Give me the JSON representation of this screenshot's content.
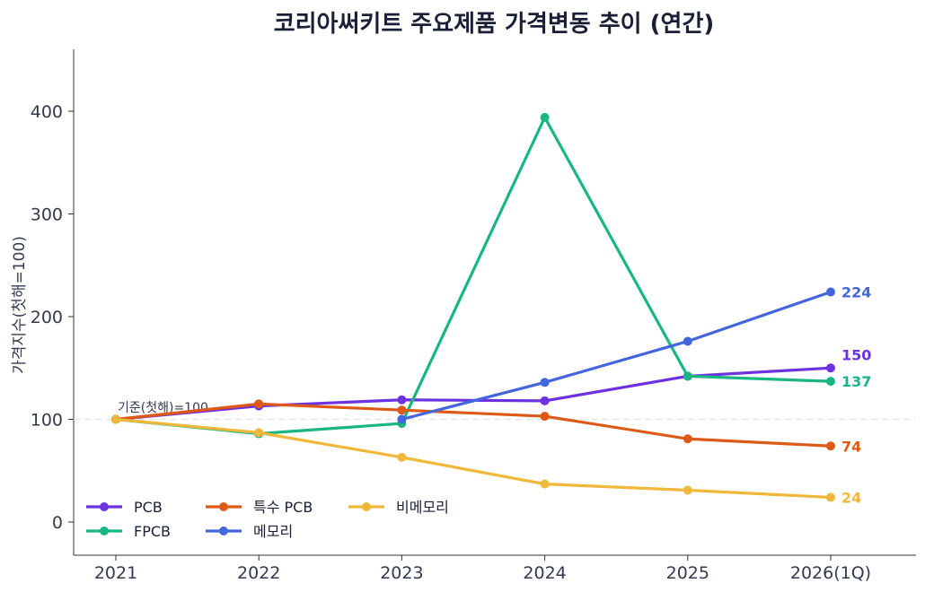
{
  "chart_data": {
    "type": "line",
    "title": "코리아써키트 주요제품 가격변동 추이 (연간)",
    "xlabel": "",
    "ylabel": "가격지수(첫해=100)",
    "categories": [
      "2021",
      "2022",
      "2023",
      "2024",
      "2025",
      "2026(1Q)"
    ],
    "ylim": [
      -30,
      460
    ],
    "yticks": [
      0,
      100,
      200,
      300,
      400
    ],
    "grid": false,
    "reference_line": {
      "value": 100,
      "label": "기준(첫해)=100",
      "color": "#e2e5ea"
    },
    "legend": {
      "placement": "bottom-left",
      "columns": 3
    },
    "series": [
      {
        "name": "PCB",
        "color": "#6d32e0",
        "values": [
          100,
          113,
          119,
          118,
          142,
          150
        ],
        "end_label": "150"
      },
      {
        "name": "FPCB",
        "color": "#19b583",
        "values": [
          100,
          86,
          96,
          394,
          142,
          137
        ],
        "end_label": "137"
      },
      {
        "name": "특수 PCB",
        "color": "#dc5a16",
        "values": [
          100,
          115,
          109,
          103,
          81,
          74
        ],
        "end_label": "74"
      },
      {
        "name": "메모리",
        "color": "#4466dd",
        "values": [
          null,
          null,
          100,
          136,
          176,
          224
        ],
        "end_label": "224"
      },
      {
        "name": "비메모리",
        "color": "#f0b83a",
        "values": [
          100,
          87,
          63,
          37,
          31,
          24
        ],
        "end_label": "24"
      }
    ]
  }
}
